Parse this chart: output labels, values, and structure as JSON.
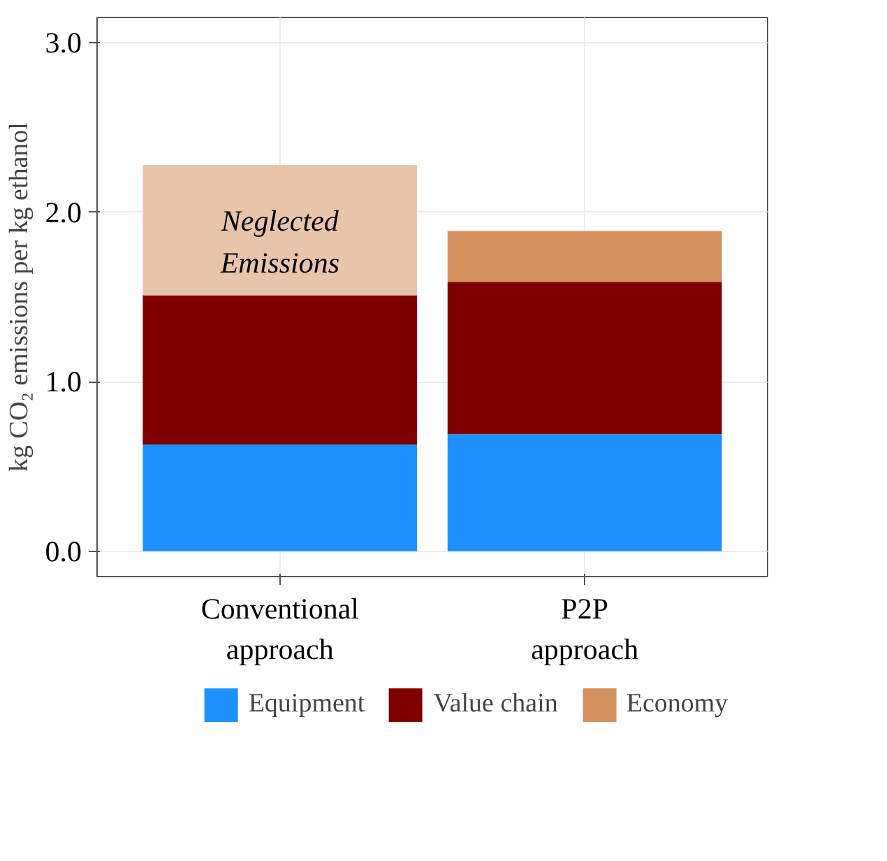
{
  "chart_data": {
    "type": "bar",
    "stacked": true,
    "ylabel": "kg CO₂ emissions per kg ethanol",
    "categories": [
      "Conventional\napproach",
      "P2P\napproach"
    ],
    "series": [
      {
        "name": "Equipment",
        "color": "#1e90ff",
        "values": [
          0.63,
          0.69
        ]
      },
      {
        "name": "Value chain",
        "color": "#7f0000",
        "values": [
          0.88,
          0.9
        ]
      },
      {
        "name": "Economy",
        "color": "#d4915f",
        "colors": [
          "#e8c4aa",
          "#d4915f"
        ],
        "values": [
          0.77,
          0.3
        ]
      }
    ],
    "annotations": [
      "Neglected\nEmissions"
    ],
    "ylim": [
      -0.15,
      3.15
    ],
    "yticks": [
      {
        "value": 0,
        "label": "0.0"
      },
      {
        "value": 1,
        "label": "1.0"
      },
      {
        "value": 2,
        "label": "2.0"
      },
      {
        "value": 3,
        "label": "3.0"
      }
    ],
    "grid": true,
    "legend": "bottom"
  }
}
